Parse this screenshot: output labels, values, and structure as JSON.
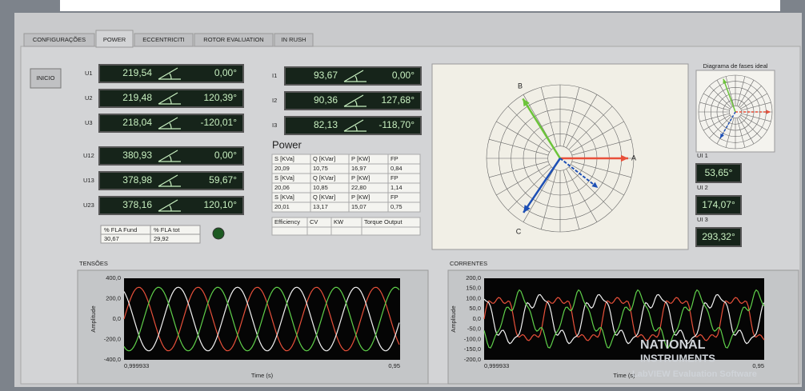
{
  "tabs": [
    "CONFIGURAÇÕES",
    "POWER",
    "ECCENTRICITI",
    "ROTOR EVALUATION",
    "IN RUSH"
  ],
  "start_button": "INICIO",
  "phase_voltages": [
    {
      "label": "U1",
      "magnitude": "219,54",
      "angle": "0,00°"
    },
    {
      "label": "U2",
      "magnitude": "219,48",
      "angle": "120,39°"
    },
    {
      "label": "U3",
      "magnitude": "218,04",
      "angle": "-120,01°"
    }
  ],
  "line_voltages": [
    {
      "label": "U12",
      "magnitude": "380,93",
      "angle": "0,00°"
    },
    {
      "label": "U13",
      "magnitude": "378,98",
      "angle": "59,67°"
    },
    {
      "label": "U23",
      "magnitude": "378,16",
      "angle": "120,10°"
    }
  ],
  "currents": [
    {
      "label": "I1",
      "magnitude": "93,67",
      "angle": "0,00°"
    },
    {
      "label": "I2",
      "magnitude": "90,36",
      "angle": "127,68°"
    },
    {
      "label": "I3",
      "magnitude": "82,13",
      "angle": "-118,70°"
    }
  ],
  "fla_table": {
    "headers": [
      "% FLA Fund",
      "% FLA tot"
    ],
    "values": [
      "30,67",
      "29,92"
    ]
  },
  "power": {
    "title": "Power",
    "rows": [
      [
        "S [KVa]",
        "Q [KVar]",
        "P [KW]",
        "FP"
      ],
      [
        "20,09",
        "10,75",
        "16,97",
        "0,84"
      ],
      [
        "S [KVa]",
        "Q [KVar]",
        "P [KW]",
        "FP"
      ],
      [
        "20,06",
        "10,85",
        "22,80",
        "1,14"
      ],
      [
        "S [KVa]",
        "Q [KVar]",
        "P [KW]",
        "FP"
      ],
      [
        "20,01",
        "13,17",
        "15,07",
        "0,75"
      ]
    ]
  },
  "efficiency_headers": [
    "Efficiency",
    "CV",
    "KW",
    "Torque Output"
  ],
  "phasor_labels": [
    "A",
    "B",
    "C"
  ],
  "ideal_diagram_title": "Diagrama de fases ideal",
  "angle_indicators": [
    {
      "label": "UI 1",
      "value": "53,65°"
    },
    {
      "label": "UI 2",
      "value": "174,07°"
    },
    {
      "label": "UI 3",
      "value": "293,32°"
    }
  ],
  "graphs": [
    {
      "title": "TENSÕES",
      "y_label": "Amplitude",
      "x_label": "Time (s)",
      "y_ticks": [
        "400,0",
        "200,0",
        "0,0",
        "-200,0",
        "-400,0"
      ],
      "x_ticks": [
        "0,999933",
        "0,95"
      ]
    },
    {
      "title": "CORRENTES",
      "y_label": "Amplitude",
      "x_label": "Time (s)",
      "y_ticks": [
        "200,0",
        "150,0",
        "100,0",
        "50,0",
        "0,0",
        "-50,0",
        "-100,0",
        "-150,0",
        "-200,0"
      ],
      "x_ticks": [
        "0,999933",
        "0,95"
      ]
    }
  ],
  "watermark": [
    "NATIONAL",
    "INSTRUMENTS",
    "LabVIEW Evaluation Software"
  ]
}
